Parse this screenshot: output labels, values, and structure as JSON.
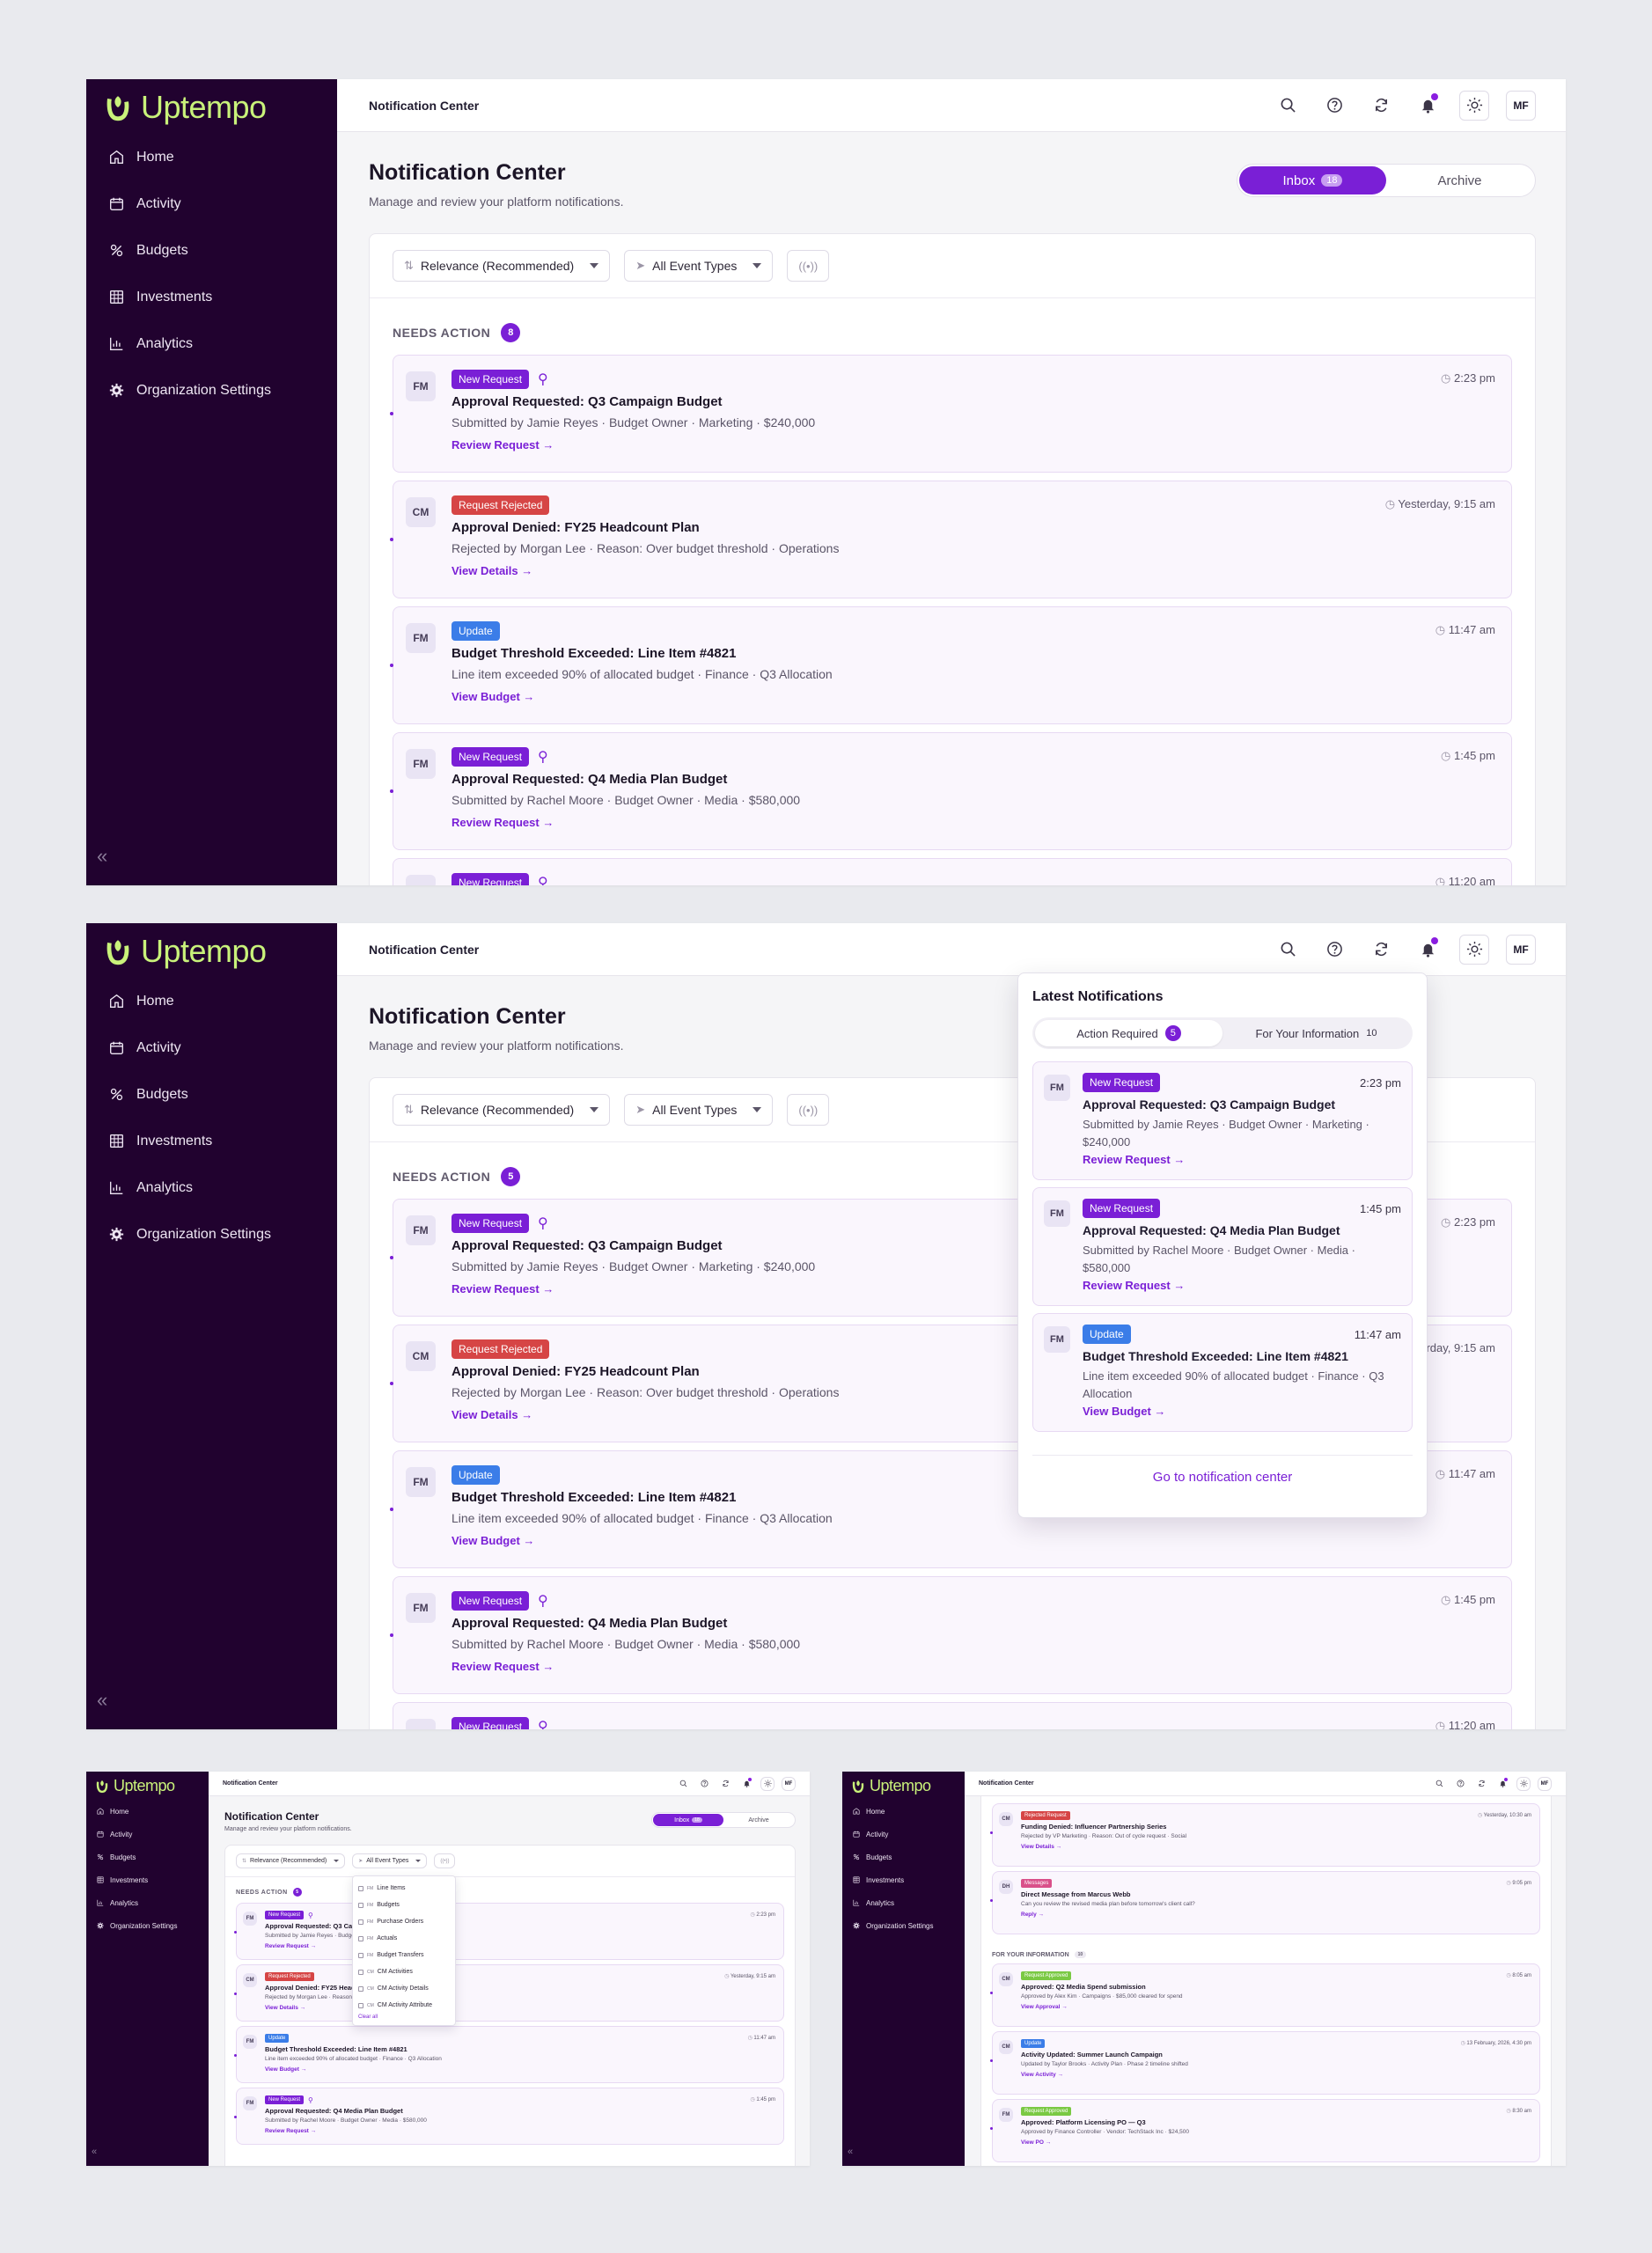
{
  "brand": {
    "name": "Uptempo",
    "logo_color": "#c9f27a"
  },
  "colors": {
    "accent": "#7a1fd6",
    "sidebar": "#21022f",
    "new_request": "#7a1fd6",
    "rejected": "#d64545",
    "update": "#3b7de8",
    "approved": "#7ac943",
    "message": "#d9508a"
  },
  "nav": [
    {
      "label": "Home",
      "icon": "home-icon"
    },
    {
      "label": "Activity",
      "icon": "calendar-icon"
    },
    {
      "label": "Budgets",
      "icon": "budgets-icon"
    },
    {
      "label": "Investments",
      "icon": "grid-icon"
    },
    {
      "label": "Analytics",
      "icon": "bar-chart-icon"
    },
    {
      "label": "Organization Settings",
      "icon": "gear-icon"
    }
  ],
  "topbar": {
    "title": "Notification Center",
    "avatar": "MF"
  },
  "page": {
    "title": "Notification Center",
    "subtitle": "Manage and review your platform notifications."
  },
  "tabs": {
    "inbox": "Inbox",
    "inbox_count": "18",
    "archive": "Archive"
  },
  "filters": {
    "sort": "Relevance (Recommended)",
    "events": "All Event Types"
  },
  "needs_action": {
    "label": "NEEDS ACTION",
    "count_1": "8",
    "count_2": "5"
  },
  "notifications": [
    {
      "avatar": "FM",
      "tag": "New Request",
      "pinned": true,
      "time": "2:23 pm",
      "title": "Approval Requested: Q3 Campaign Budget",
      "desc": "Submitted by Jamie Reyes · Budget Owner · Marketing · $240,000",
      "action": "Review Request →"
    },
    {
      "avatar": "CM",
      "tag": "Request Rejected",
      "pinned": false,
      "time": "Yesterday, 9:15 am",
      "title": "Approval Denied: FY25 Headcount Plan",
      "desc": "Rejected by Morgan Lee · Reason: Over budget threshold · Operations",
      "action": "View Details →"
    },
    {
      "avatar": "FM",
      "tag": "Update",
      "pinned": false,
      "time": "11:47 am",
      "title": "Budget Threshold Exceeded: Line Item #4821",
      "desc": "Line item exceeded 90% of allocated budget · Finance · Q3 Allocation",
      "action": "View Budget →"
    },
    {
      "avatar": "FM",
      "tag": "New Request",
      "pinned": true,
      "time": "1:45 pm",
      "title": "Approval Requested: Q4 Media Plan Budget",
      "desc": "Submitted by Rachel Moore · Budget Owner · Media · $580,000",
      "action": "Review Request →"
    }
  ],
  "partial_next": {
    "tag": "New Request",
    "time": "11:20 am"
  },
  "popover": {
    "title": "Latest Notifications",
    "tab_action": "Action Required",
    "tab_action_count": "5",
    "tab_info": "For Your Information",
    "tab_info_count": "10",
    "items": [
      {
        "avatar": "FM",
        "tag": "New Request",
        "time": "2:23 pm",
        "title": "Approval Requested: Q3 Campaign Budget",
        "desc": "Submitted by Jamie Reyes · Budget Owner · Marketing · $240,000",
        "action": "Review Request →"
      },
      {
        "avatar": "FM",
        "tag": "New Request",
        "time": "1:45 pm",
        "title": "Approval Requested: Q4 Media Plan Budget",
        "desc": "Submitted by Rachel Moore · Budget Owner · Media · $580,000",
        "action": "Review Request →"
      },
      {
        "avatar": "FM",
        "tag": "Update",
        "time": "11:47 am",
        "title": "Budget Threshold Exceeded: Line Item #4821",
        "desc": "Line item exceeded 90% of allocated budget · Finance · Q3 Allocation",
        "action": "View Budget →"
      }
    ],
    "footer": "Go to notification center"
  },
  "event_dropdown": {
    "options": [
      {
        "group": "FM",
        "label": "Line Items"
      },
      {
        "group": "FM",
        "label": "Budgets"
      },
      {
        "group": "FM",
        "label": "Purchase Orders"
      },
      {
        "group": "FM",
        "label": "Actuals"
      },
      {
        "group": "FM",
        "label": "Budget Transfers"
      },
      {
        "group": "CM",
        "label": "CM Activities"
      },
      {
        "group": "CM",
        "label": "CM Activity Details"
      },
      {
        "group": "CM",
        "label": "CM Activity Attribute"
      }
    ],
    "clear": "Clear all"
  },
  "scrolled": {
    "items": [
      {
        "avatar": "CM",
        "tag": "Rejected Request",
        "time": "Yesterday, 10:30 am",
        "title": "Funding Denied: Influencer Partnership Series",
        "desc": "Rejected by VP Marketing · Reason: Out of cycle request · Social",
        "action": "View Details →"
      },
      {
        "avatar": "DH",
        "tag": "Messages",
        "time": "9:05 pm",
        "title": "Direct Message from Marcus Webb",
        "desc": "Can you review the revised media plan before tomorrow's client call?",
        "action": "Reply →"
      }
    ],
    "info_label": "FOR YOUR INFORMATION",
    "info_count": "10",
    "info_items": [
      {
        "avatar": "CM",
        "tag": "Request Approved",
        "time": "8:05 am",
        "title": "Approved: Q2 Media Spend submission",
        "desc": "Approved by Alex Kim · Campaigns · $85,000 cleared for spend",
        "action": "View Approval →"
      },
      {
        "avatar": "CM",
        "tag": "Update",
        "time": "13 February, 2026, 4:30 pm",
        "title": "Activity Updated: Summer Launch Campaign",
        "desc": "Updated by Taylor Brooks · Activity Plan · Phase 2 timeline shifted",
        "action": "View Activity →"
      },
      {
        "avatar": "FM",
        "tag": "Request Approved",
        "time": "8:30 am",
        "title": "Approved: Platform Licensing PO — Q3",
        "desc": "Approved by Finance Controller · Vendor: TechStack Inc · $24,500",
        "action": "View PO →"
      }
    ]
  }
}
